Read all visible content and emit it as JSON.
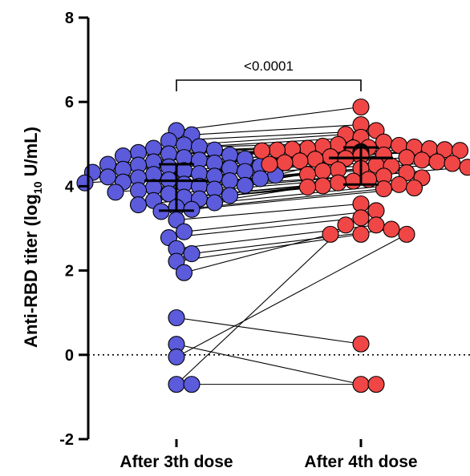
{
  "chart_data": {
    "type": "scatter",
    "subtype": "paired dot plot with median and interquartile range",
    "categories": [
      "After 3th dose",
      "After 4th dose"
    ],
    "y_axis": {
      "label_main": "Anti-RBD titer (log",
      "label_sub": "10",
      "label_end": " U/mL)",
      "ylim": [
        -2,
        8
      ],
      "ticks": [
        -2,
        0,
        2,
        4,
        6,
        8
      ],
      "tick_labels": [
        "-2",
        "0",
        "2",
        "4",
        "6",
        "8"
      ]
    },
    "reference_line_y": 0,
    "grid": false,
    "significance": {
      "between": [
        0,
        1
      ],
      "label": "<0.0001"
    },
    "colors": {
      "after_3rd_dose": "#5b5bdb",
      "after_4th_dose": "#f04646",
      "lines": "#000000"
    },
    "summary": [
      {
        "category": "After 3th dose",
        "median": 4.13,
        "q1": 3.42,
        "q3": 4.52
      },
      {
        "category": "After 4th dose",
        "median": 4.67,
        "q1": 4.04,
        "q3": 4.92
      }
    ],
    "pairs": [
      [
        5.32,
        5.88
      ],
      [
        5.22,
        5.46
      ],
      [
        5.08,
        5.32
      ],
      [
        4.98,
        5.23
      ],
      [
        4.94,
        5.16
      ],
      [
        4.9,
        5.05
      ],
      [
        4.86,
        4.99
      ],
      [
        4.8,
        4.97
      ],
      [
        4.77,
        4.95
      ],
      [
        4.74,
        4.93
      ],
      [
        4.72,
        4.92
      ],
      [
        4.68,
        4.91
      ],
      [
        4.65,
        4.9
      ],
      [
        4.62,
        4.89
      ],
      [
        4.58,
        4.88
      ],
      [
        4.55,
        4.87
      ],
      [
        4.52,
        4.86
      ],
      [
        4.5,
        4.85
      ],
      [
        4.48,
        4.84
      ],
      [
        4.46,
        4.82
      ],
      [
        4.43,
        4.8
      ],
      [
        4.4,
        4.78
      ],
      [
        4.37,
        4.76
      ],
      [
        4.35,
        4.74
      ],
      [
        4.33,
        4.72
      ],
      [
        4.3,
        4.7
      ],
      [
        4.28,
        4.68
      ],
      [
        4.26,
        4.66
      ],
      [
        4.24,
        4.64
      ],
      [
        4.22,
        4.62
      ],
      [
        4.2,
        4.6
      ],
      [
        4.18,
        4.58
      ],
      [
        4.15,
        4.56
      ],
      [
        4.13,
        4.54
      ],
      [
        4.1,
        4.52
      ],
      [
        4.08,
        4.5
      ],
      [
        4.05,
        4.48
      ],
      [
        4.02,
        4.45
      ],
      [
        4.0,
        4.42
      ],
      [
        3.97,
        4.39
      ],
      [
        3.93,
        4.36
      ],
      [
        3.9,
        4.32
      ],
      [
        3.86,
        4.28
      ],
      [
        3.82,
        4.24
      ],
      [
        3.78,
        4.2
      ],
      [
        3.74,
        4.16
      ],
      [
        3.7,
        4.12
      ],
      [
        3.66,
        4.08
      ],
      [
        3.61,
        4.04
      ],
      [
        3.56,
        4.01
      ],
      [
        3.5,
        3.98
      ],
      [
        3.45,
        3.96
      ],
      [
        3.4,
        3.94
      ],
      [
        3.2,
        3.58
      ],
      [
        2.92,
        3.42
      ],
      [
        2.78,
        3.25
      ],
      [
        2.52,
        3.08
      ],
      [
        2.4,
        2.98
      ],
      [
        2.22,
        2.86
      ],
      [
        1.95,
        2.86
      ],
      [
        0.88,
        0.26
      ],
      [
        0.25,
        -0.7
      ],
      [
        -0.05,
        2.86
      ],
      [
        -0.7,
        3.08
      ],
      [
        -0.7,
        -0.7
      ]
    ]
  }
}
